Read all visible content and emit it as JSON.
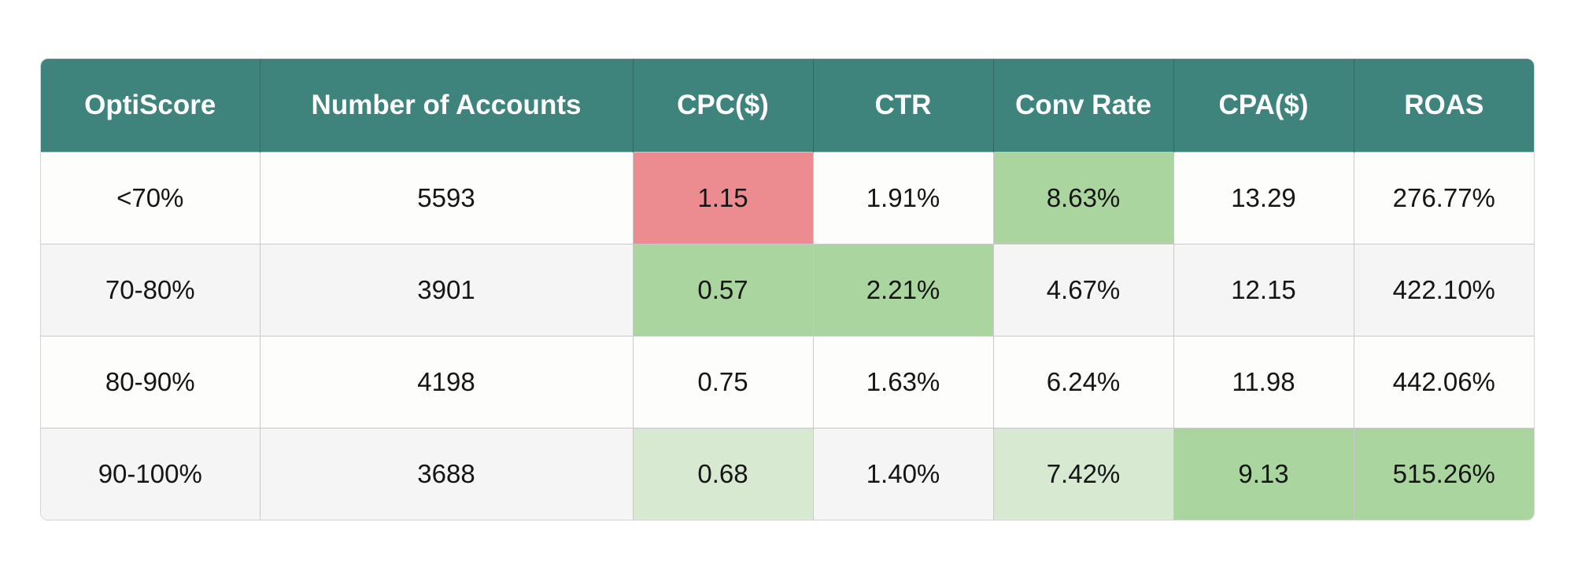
{
  "chart_data": {
    "type": "table",
    "columns": [
      "OptiScore",
      "Number of Accounts",
      "CPC($)",
      "CTR",
      "Conv Rate",
      "CPA($)",
      "ROAS"
    ],
    "rows": [
      [
        "<70%",
        "5593",
        "1.15",
        "1.91%",
        "8.63%",
        "13.29",
        "276.77%"
      ],
      [
        "70-80%",
        "3901",
        "0.57",
        "2.21%",
        "4.67%",
        "12.15",
        "422.10%"
      ],
      [
        "80-90%",
        "4198",
        "0.75",
        "1.63%",
        "6.24%",
        "11.98",
        "442.06%"
      ],
      [
        "90-100%",
        "3688",
        "0.68",
        "1.40%",
        "7.42%",
        "9.13",
        "515.26%"
      ]
    ],
    "highlights": [
      [
        "none",
        "none",
        "red",
        "none",
        "green",
        "none",
        "none"
      ],
      [
        "none",
        "none",
        "green",
        "green",
        "none",
        "none",
        "none"
      ],
      [
        "none",
        "none",
        "none",
        "none",
        "none",
        "none",
        "none"
      ],
      [
        "none",
        "none",
        "lightgreen",
        "none",
        "lightgreen",
        "green",
        "green"
      ]
    ],
    "colors": {
      "header_bg": "#3e847c",
      "header_text": "#ffffff",
      "red": "#ec8c91",
      "green": "#abd59f",
      "lightgreen": "#d7ead1"
    }
  }
}
